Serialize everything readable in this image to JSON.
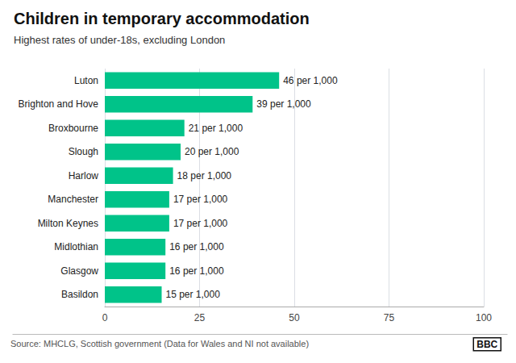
{
  "chart_data": {
    "type": "bar",
    "orientation": "horizontal",
    "title": "Children in temporary accommodation",
    "subtitle": "Highest rates of under-18s, excluding London",
    "categories": [
      "Basildon",
      "Glasgow",
      "Midlothian",
      "Milton Keynes",
      "Manchester",
      "Harlow",
      "Slough",
      "Broxbourne",
      "Brighton and Hove",
      "Luton"
    ],
    "values": [
      15,
      16,
      16,
      17,
      17,
      18,
      20,
      21,
      39,
      46
    ],
    "value_labels": [
      "15 per 1,000",
      "16 per 1,000",
      "16 per 1,000",
      "17 per 1,000",
      "17 per 1,000",
      "18 per 1,000",
      "20 per 1,000",
      "21 per 1,000",
      "39 per 1,000",
      "46 per 1,000"
    ],
    "data_labels": true,
    "color": "#00c389",
    "xlim": [
      0,
      100
    ],
    "xticks": [
      0,
      25,
      50,
      75,
      100
    ],
    "grid": true,
    "annotations": [
      "Source: MHCLG, Scottish government (Data for Wales and NI not available)",
      "BBC"
    ]
  }
}
